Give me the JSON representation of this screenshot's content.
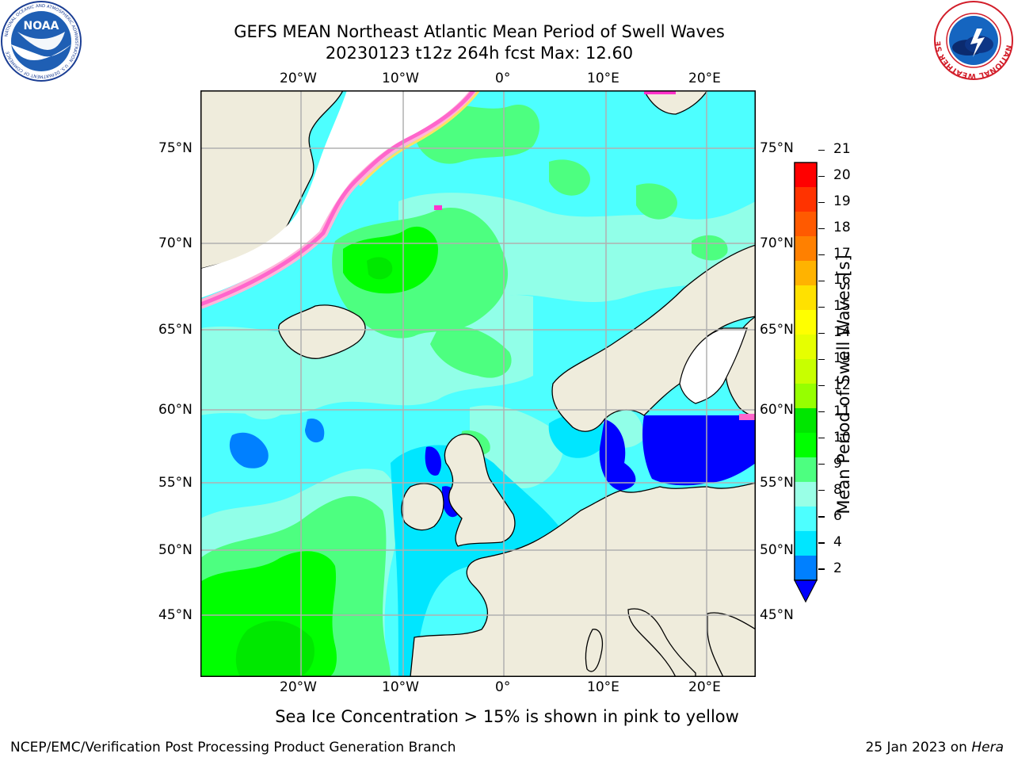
{
  "header": {
    "title_line1": "GEFS MEAN Northeast Atlantic Mean Period of Swell Waves",
    "title_line2": "20230123 t12z 264h fcst   Max: 12.60",
    "left_logo_icon": "noaa-logo-icon",
    "right_logo_icon": "national-weather-service-logo-icon"
  },
  "logos": {
    "noaa_text": "NOAA",
    "noaa_ring_text": "NATIONAL OCEANIC AND ATMOSPHERIC ADMINISTRATION · U.S. DEPARTMENT OF COMMERCE",
    "nws_ring_text": "NATIONAL WEATHER SERVICE"
  },
  "map": {
    "lon_labels": [
      "20°W",
      "10°W",
      "0°",
      "10°E",
      "20°E"
    ],
    "lat_labels": [
      "75°N",
      "70°N",
      "65°N",
      "60°N",
      "55°N",
      "50°N",
      "45°N"
    ],
    "ocean_color": "#4dffff",
    "land_color": "#efecdc",
    "grid_color": "#b0b0b0"
  },
  "colorbar": {
    "label": "Mean Period of Swell Waves [s]",
    "ticks": [
      "21",
      "20",
      "19",
      "18",
      "17",
      "16",
      "15",
      "14",
      "13",
      "12",
      "11",
      "10",
      "9",
      "8",
      "6",
      "4",
      "2"
    ],
    "colors": [
      "#ff0000",
      "#ff3300",
      "#ff5a00",
      "#ff8000",
      "#ffb300",
      "#ffe100",
      "#ffff00",
      "#e6ff00",
      "#c8ff00",
      "#96ff00",
      "#00e600",
      "#00ff00",
      "#4dff80",
      "#99ffe6",
      "#4dffff",
      "#00e6ff",
      "#0080ff"
    ],
    "extend_color": "#0000ff"
  },
  "footer": {
    "note": "Sea Ice Concentration > 15% is shown in pink to yellow",
    "left": "NCEP/EMC/Verification Post Processing Product Generation Branch",
    "right_prefix": "25 Jan 2023 on ",
    "right_host": "Hera"
  }
}
